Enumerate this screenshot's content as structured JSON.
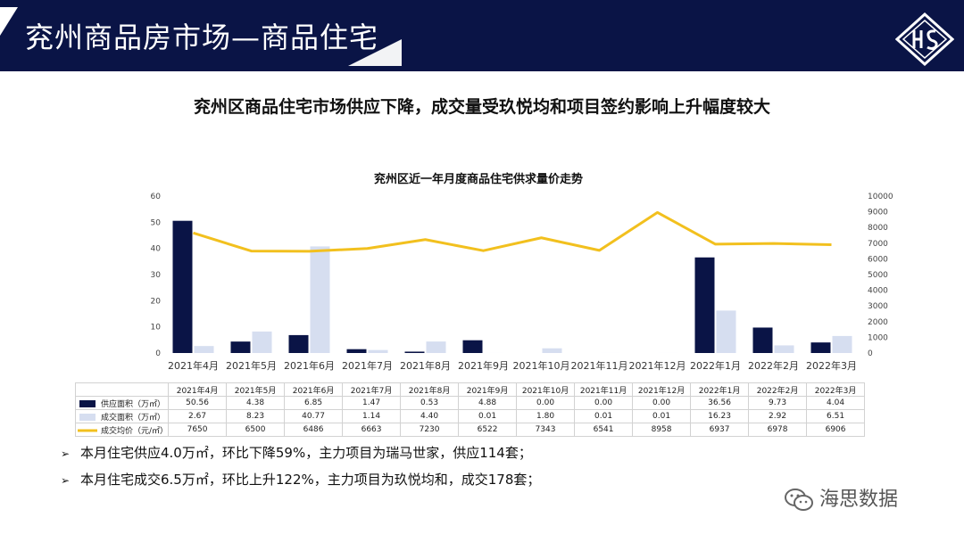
{
  "header": {
    "title": "兖州商品房市场—商品住宅"
  },
  "headline": "兖州区商品住宅市场供应下降，成交量受玖悦均和项目签约影响上升幅度较大",
  "chart_data": {
    "type": "bar",
    "title": "兖州区近一年月度商品住宅供求量价走势",
    "categories": [
      "2021年4月",
      "2021年5月",
      "2021年6月",
      "2021年7月",
      "2021年8月",
      "2021年9月",
      "2021年10月",
      "2021年11月",
      "2021年12月",
      "2022年1月",
      "2022年2月",
      "2022年3月"
    ],
    "series": [
      {
        "name": "供应面积（万㎡）",
        "type": "bar",
        "axis": "left",
        "color": "#0a1446",
        "values": [
          50.56,
          4.38,
          6.85,
          1.47,
          0.53,
          4.88,
          0.0,
          0.0,
          0.0,
          36.56,
          9.73,
          4.04
        ],
        "labels": [
          "50.56",
          "4.38",
          "6.85",
          "1.47",
          "0.53",
          "4.88",
          "0.00",
          "0.00",
          "0.00",
          "36.56",
          "9.73",
          "4.04"
        ]
      },
      {
        "name": "成交面积（万㎡）",
        "type": "bar",
        "axis": "left",
        "color": "#d6def0",
        "values": [
          2.67,
          8.23,
          40.77,
          1.14,
          4.4,
          0.01,
          1.8,
          0.01,
          0.01,
          16.23,
          2.92,
          6.51
        ],
        "labels": [
          "2.67",
          "8.23",
          "40.77",
          "1.14",
          "4.40",
          "0.01",
          "1.80",
          "0.01",
          "0.01",
          "16.23",
          "2.92",
          "6.51"
        ]
      },
      {
        "name": "成交均价（元/㎡）",
        "type": "line",
        "axis": "right",
        "color": "#f2c01e",
        "values": [
          7650,
          6500,
          6486,
          6663,
          7230,
          6522,
          7343,
          6541,
          8958,
          6937,
          6978,
          6906
        ],
        "labels": [
          "7650",
          "6500",
          "6486",
          "6663",
          "7230",
          "6522",
          "7343",
          "6541",
          "8958",
          "6937",
          "6978",
          "6906"
        ]
      }
    ],
    "ylim_left": [
      0,
      60
    ],
    "ylim_right": [
      0,
      10000
    ],
    "yticks_left": [
      "0",
      "10",
      "20",
      "30",
      "40",
      "50",
      "60"
    ],
    "yticks_right": [
      "0",
      "1000",
      "2000",
      "3000",
      "4000",
      "5000",
      "6000",
      "7000",
      "8000",
      "9000",
      "10000"
    ],
    "grid": false,
    "legend": "data-table"
  },
  "bullets": [
    "本月住宅供应4.0万㎡，环比下降59%，主力项目为瑞马世家，供应114套；",
    "本月住宅成交6.5万㎡，环比上升122%，主力项目为玖悦均和，成交178套；"
  ],
  "bullet_marker": "➢",
  "watermark": "海思数据"
}
